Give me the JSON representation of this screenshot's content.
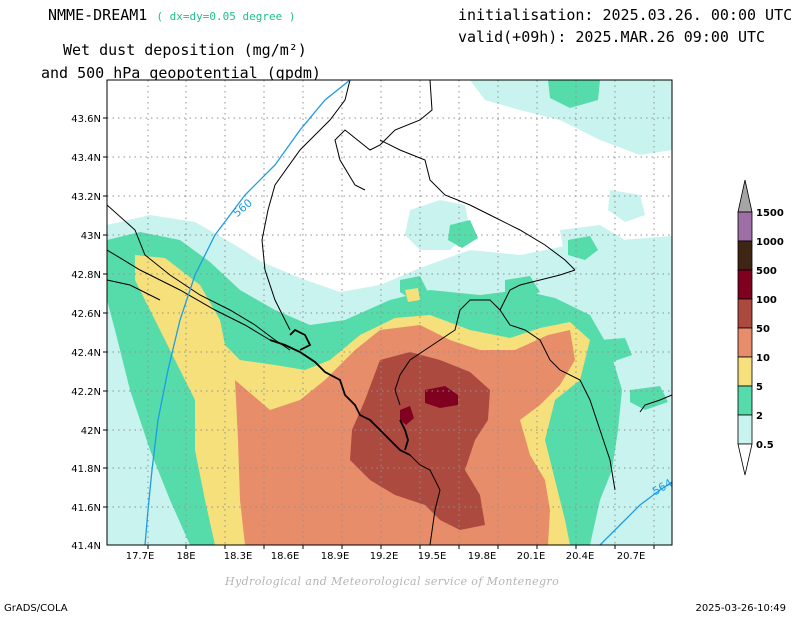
{
  "header": {
    "model": "NMME-DREAM1",
    "grid_note": "( dx=dy=0.05 degree )",
    "initialisation": "initialisation: 2025.03.26. 00:00 UTC",
    "valid": "valid(+09h): 2025.MAR.26 09:00 UTC",
    "title_line1": "Wet dust deposition (mg/m²)",
    "title_line2": "and 500 hPa geopotential (gpdm)"
  },
  "map": {
    "lat_labels": [
      "43.6N",
      "43.4N",
      "43.2N",
      "43N",
      "42.8N",
      "42.6N",
      "42.4N",
      "42.2N",
      "42N",
      "41.8N",
      "41.6N",
      "41.4N"
    ],
    "lon_labels": [
      "17.7E",
      "18E",
      "18.3E",
      "18.6E",
      "18.9E",
      "19.2E",
      "19.5E",
      "19.8E",
      "20.1E",
      "20.4E",
      "20.7E"
    ],
    "contour_labels": [
      "560",
      "564"
    ],
    "colors": {
      "level_0_5": "#c9f3ee",
      "level_2": "#55dcaa",
      "level_5": "#f6e07c",
      "level_10": "#e88d6a",
      "level_50": "#ad4a40",
      "level_100": "#800020",
      "contour": "#1e9be6",
      "border": "#000000"
    }
  },
  "colorbar": {
    "labels": [
      "1500",
      "1000",
      "500",
      "100",
      "50",
      "10",
      "5",
      "2",
      "0.5"
    ],
    "colors": [
      "#9d6fa6",
      "#3f2614",
      "#800020",
      "#ad4a40",
      "#e88d6a",
      "#f6e07c",
      "#55dcaa",
      "#c9f3ee"
    ],
    "top_arrow_color": "#a5a5a5",
    "bottom_arrow_color": "#ffffff"
  },
  "credit": "Hydrological and Meteorological service of Montenegro",
  "footer": {
    "left": "GrADS/COLA",
    "right": "2025-03-26-10:49"
  }
}
